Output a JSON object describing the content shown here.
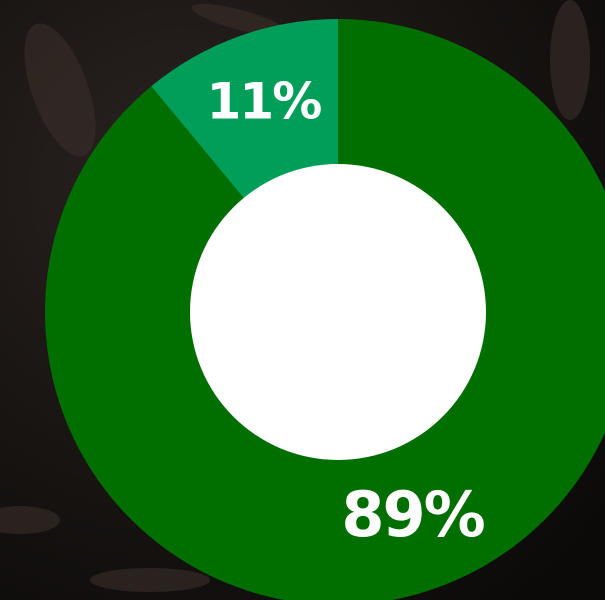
{
  "chart_data": {
    "type": "donut",
    "values": [
      89,
      11
    ],
    "value_labels": [
      "89%",
      "11%"
    ],
    "colors": [
      "#006f00",
      "#009e58"
    ]
  }
}
